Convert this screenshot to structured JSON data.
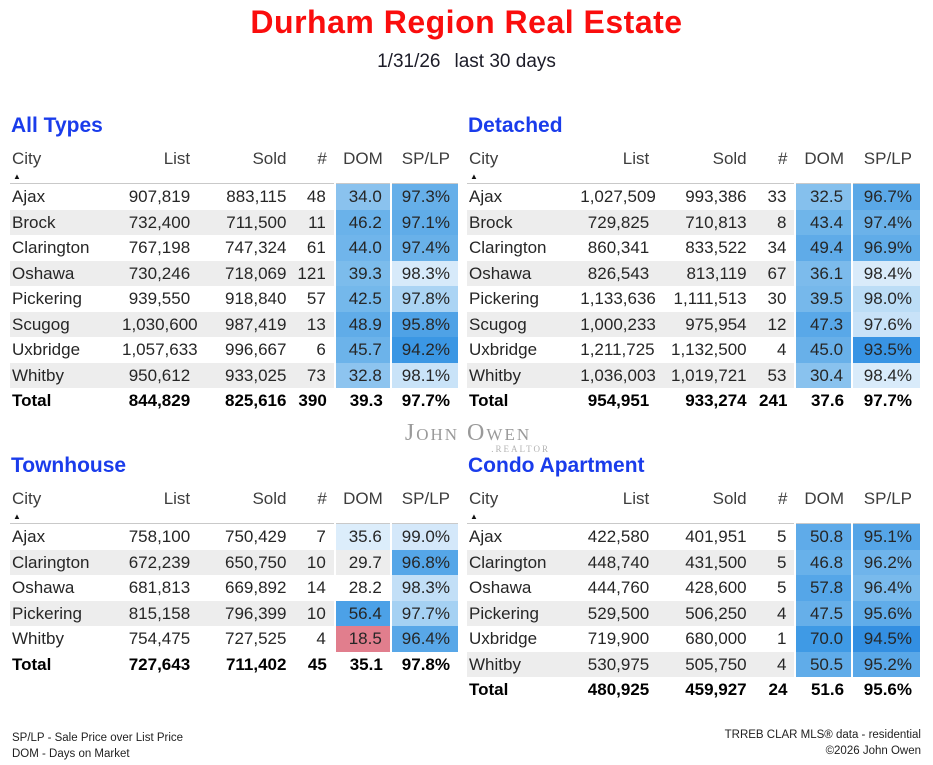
{
  "header": {
    "title": "Durham Region Real Estate",
    "date": "1/31/26",
    "period": "last 30 days"
  },
  "columns": [
    "City",
    "List",
    "Sold",
    "#",
    "DOM",
    "SP/LP"
  ],
  "colors": {
    "title_red": "#fa0d0d",
    "section_blue": "#1a3ceb",
    "stripe": "#ededed",
    "dom_low_red": "#e17e8d"
  },
  "watermark": {
    "name": "John Owen",
    "suffix": ".REALTOR"
  },
  "tables": [
    {
      "title": "All Types",
      "rows": [
        {
          "city": "Ajax",
          "list": "907,819",
          "sold": "883,115",
          "n": "48",
          "dom": "34.0",
          "splp": "97.3%",
          "dom_bg": "#8ac2ee",
          "splp_bg": "#66afe9"
        },
        {
          "city": "Brock",
          "list": "732,400",
          "sold": "711,500",
          "n": "11",
          "dom": "46.2",
          "splp": "97.1%",
          "dom_bg": "#6ab2ea",
          "splp_bg": "#60ace8"
        },
        {
          "city": "Clarington",
          "list": "767,198",
          "sold": "747,324",
          "n": "61",
          "dom": "44.0",
          "splp": "97.4%",
          "dom_bg": "#70b5eb",
          "splp_bg": "#69b1e9"
        },
        {
          "city": "Oshawa",
          "list": "730,246",
          "sold": "718,069",
          "n": "121",
          "dom": "39.3",
          "splp": "98.3%",
          "dom_bg": "#7cbcec",
          "splp_bg": "#d7eafa"
        },
        {
          "city": "Pickering",
          "list": "939,550",
          "sold": "918,840",
          "n": "57",
          "dom": "42.5",
          "splp": "97.8%",
          "dom_bg": "#74b8eb",
          "splp_bg": "#abd4f4"
        },
        {
          "city": "Scugog",
          "list": "1,030,600",
          "sold": "987,419",
          "n": "13",
          "dom": "48.9",
          "splp": "95.8%",
          "dom_bg": "#60ace8",
          "splp_bg": "#4fa2e6"
        },
        {
          "city": "Uxbridge",
          "list": "1,057,633",
          "sold": "996,667",
          "n": "6",
          "dom": "45.7",
          "splp": "94.2%",
          "dom_bg": "#6cb3ea",
          "splp_bg": "#3b97e4"
        },
        {
          "city": "Whitby",
          "list": "950,612",
          "sold": "933,025",
          "n": "73",
          "dom": "32.8",
          "splp": "98.1%",
          "dom_bg": "#8dc4ef",
          "splp_bg": "#c9e3f8"
        }
      ],
      "total": {
        "label": "Total",
        "list": "844,829",
        "sold": "825,616",
        "n": "390",
        "dom": "39.3",
        "splp": "97.7%"
      }
    },
    {
      "title": "Detached",
      "rows": [
        {
          "city": "Ajax",
          "list": "1,027,509",
          "sold": "993,386",
          "n": "33",
          "dom": "32.5",
          "splp": "96.7%",
          "dom_bg": "#85c0ed",
          "splp_bg": "#5aa8e7"
        },
        {
          "city": "Brock",
          "list": "729,825",
          "sold": "710,813",
          "n": "8",
          "dom": "43.4",
          "splp": "97.4%",
          "dom_bg": "#6fb5ea",
          "splp_bg": "#6bb2e9"
        },
        {
          "city": "Clarington",
          "list": "860,341",
          "sold": "833,522",
          "n": "34",
          "dom": "49.4",
          "splp": "96.9%",
          "dom_bg": "#5fabe8",
          "splp_bg": "#60ace8"
        },
        {
          "city": "Oshawa",
          "list": "826,543",
          "sold": "813,119",
          "n": "67",
          "dom": "36.1",
          "splp": "98.4%",
          "dom_bg": "#7cbbec",
          "splp_bg": "#d9ebfa"
        },
        {
          "city": "Pickering",
          "list": "1,133,636",
          "sold": "1,111,513",
          "n": "30",
          "dom": "39.5",
          "splp": "98.0%",
          "dom_bg": "#76b8eb",
          "splp_bg": "#bcddf6"
        },
        {
          "city": "Scugog",
          "list": "1,000,233",
          "sold": "975,954",
          "n": "12",
          "dom": "47.3",
          "splp": "97.6%",
          "dom_bg": "#59a8e8",
          "splp_bg": "#c8e2f8"
        },
        {
          "city": "Uxbridge",
          "list": "1,211,725",
          "sold": "1,132,500",
          "n": "4",
          "dom": "45.0",
          "splp": "93.5%",
          "dom_bg": "#68b0e9",
          "splp_bg": "#3894e4"
        },
        {
          "city": "Whitby",
          "list": "1,036,003",
          "sold": "1,019,721",
          "n": "53",
          "dom": "30.4",
          "splp": "98.4%",
          "dom_bg": "#89c2ee",
          "splp_bg": "#d9ebfa"
        }
      ],
      "total": {
        "label": "Total",
        "list": "954,951",
        "sold": "933,274",
        "n": "241",
        "dom": "37.6",
        "splp": "97.7%"
      }
    },
    {
      "title": "Townhouse",
      "rows": [
        {
          "city": "Ajax",
          "list": "758,100",
          "sold": "750,429",
          "n": "7",
          "dom": "35.6",
          "splp": "99.0%",
          "dom_bg": "#dcedfb",
          "splp_bg": "#d4e8fa"
        },
        {
          "city": "Clarington",
          "list": "672,239",
          "sold": "650,750",
          "n": "10",
          "dom": "29.7",
          "splp": "96.8%",
          "dom_bg": "transparent",
          "splp_bg": "#55a6e8"
        },
        {
          "city": "Oshawa",
          "list": "681,813",
          "sold": "669,892",
          "n": "14",
          "dom": "28.2",
          "splp": "98.3%",
          "dom_bg": "transparent",
          "splp_bg": "#c2dff7"
        },
        {
          "city": "Pickering",
          "list": "815,158",
          "sold": "796,399",
          "n": "10",
          "dom": "56.4",
          "splp": "97.7%",
          "dom_bg": "#4ca1e7",
          "splp_bg": "#a5d1f3"
        },
        {
          "city": "Whitby",
          "list": "754,475",
          "sold": "727,525",
          "n": "4",
          "dom": "18.5",
          "splp": "96.4%",
          "dom_bg": "#e17e8d",
          "splp_bg": "#58a7e8"
        }
      ],
      "total": {
        "label": "Total",
        "list": "727,643",
        "sold": "711,402",
        "n": "45",
        "dom": "35.1",
        "splp": "97.8%"
      }
    },
    {
      "title": "Condo Apartment",
      "rows": [
        {
          "city": "Ajax",
          "list": "422,580",
          "sold": "401,951",
          "n": "5",
          "dom": "50.8",
          "splp": "95.1%",
          "dom_bg": "#5fabe9",
          "splp_bg": "#55a5e7"
        },
        {
          "city": "Clarington",
          "list": "448,740",
          "sold": "431,500",
          "n": "5",
          "dom": "46.8",
          "splp": "96.2%",
          "dom_bg": "#68b1ea",
          "splp_bg": "#6fb4eb"
        },
        {
          "city": "Oshawa",
          "list": "444,760",
          "sold": "428,600",
          "n": "5",
          "dom": "57.8",
          "splp": "96.4%",
          "dom_bg": "#55a6e8",
          "splp_bg": "#79baec"
        },
        {
          "city": "Pickering",
          "list": "529,500",
          "sold": "506,250",
          "n": "4",
          "dom": "47.5",
          "splp": "95.6%",
          "dom_bg": "#66afe9",
          "splp_bg": "#60ace9"
        },
        {
          "city": "Uxbridge",
          "list": "719,900",
          "sold": "680,000",
          "n": "1",
          "dom": "70.0",
          "splp": "94.5%",
          "dom_bg": "#3f9ae5",
          "splp_bg": "#338fe2"
        },
        {
          "city": "Whitby",
          "list": "530,975",
          "sold": "505,750",
          "n": "4",
          "dom": "50.5",
          "splp": "95.2%",
          "dom_bg": "#60ace9",
          "splp_bg": "#5aa8e8"
        }
      ],
      "total": {
        "label": "Total",
        "list": "480,925",
        "sold": "459,927",
        "n": "24",
        "dom": "51.6",
        "splp": "95.6%"
      }
    }
  ],
  "footer": {
    "left_line1": "SP/LP - Sale Price over List Price",
    "left_line2": "DOM - Days on Market",
    "right_line1": "TRREB CLAR MLS® data - residential",
    "right_line2": "©2026 John Owen"
  }
}
